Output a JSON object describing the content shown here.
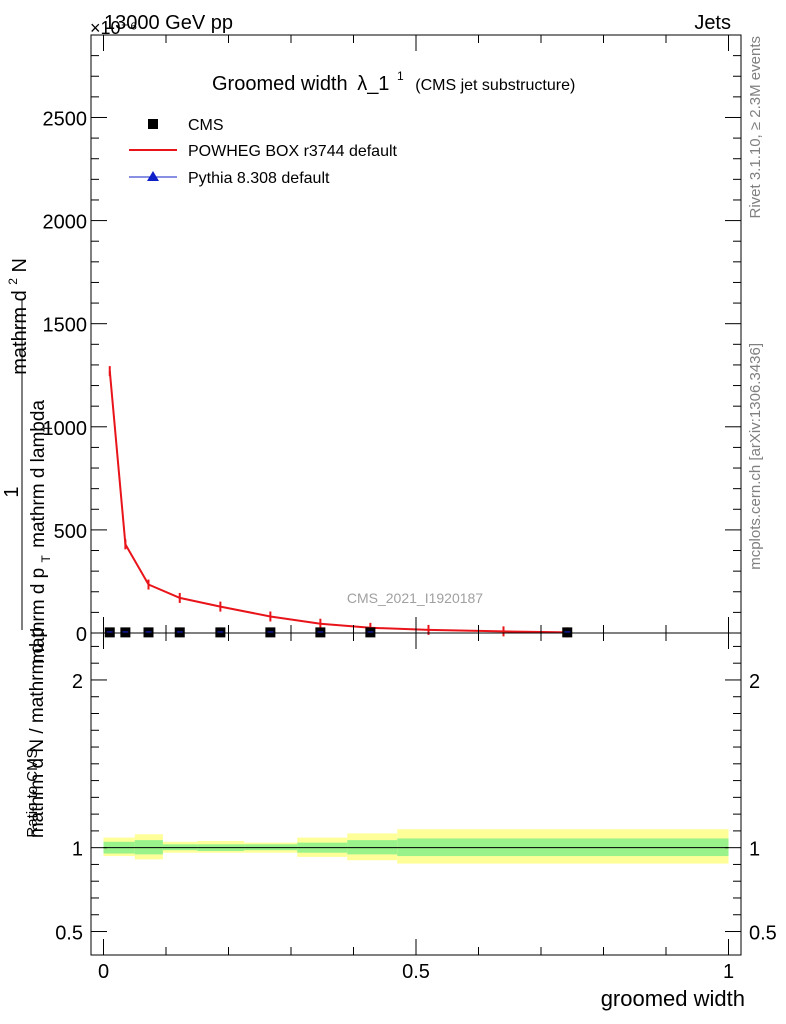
{
  "header": {
    "left": "13000 GeV pp",
    "right": "Jets",
    "exponent_label": "×10⁻⁶"
  },
  "side_labels": {
    "rivet": "Rivet 3.1.10, ≥ 2.3M events",
    "mcplots": "mcplots.cern.ch [arXiv:1306.3436]"
  },
  "watermark": "CMS_2021_I1920187",
  "colors": {
    "cms": "#000000",
    "powheg": "#e8141a",
    "pythia": "#1020c8",
    "band_inner": "#99f28a",
    "band_outer": "#ffff9a"
  },
  "chart_data": [
    {
      "type": "line",
      "title": "Groomed width",
      "title_math": "λ_1",
      "title_sup": "1",
      "subtitle": "(CMS jet substructure)",
      "ylabel": "1 / mathrm d N / mathrm d p_T mathrm d^2N / mathrm d p_T mathrm d lambda",
      "ylabel_parts": {
        "numerator_left": "1",
        "denominator_left": "mathrm d N / mathrm d p",
        "numerator_right": "mathrm d",
        "numerator_right_sup": "2",
        "numerator_right_end": "N",
        "denominator_right": "mathrm d p",
        "denominator_right_end": "mathrm d lambda",
        "subscript": "T"
      },
      "y_scale_exponent": -6,
      "xlim": [
        -0.02,
        1.02
      ],
      "ylim": [
        0,
        2900
      ],
      "yticks": [
        0,
        500,
        1000,
        1500,
        2000,
        2500
      ],
      "ytick_labels": [
        "0",
        "500",
        "1000",
        "1500",
        "2000",
        "2500"
      ],
      "legend": {
        "placement": "top-left",
        "entries": [
          "CMS",
          "POWHEG BOX r3744 default",
          "Pythia 8.308 default"
        ]
      },
      "series": [
        {
          "name": "CMS",
          "marker": "square",
          "x": [
            0.01,
            0.035,
            0.072,
            0.122,
            0.187,
            0.267,
            0.347,
            0.427,
            0.742
          ],
          "y": [
            3,
            3,
            3,
            3,
            3,
            3,
            3,
            3,
            3
          ]
        },
        {
          "name": "POWHEG BOX r3744 default",
          "marker": "line",
          "x": [
            0.01,
            0.035,
            0.072,
            0.122,
            0.187,
            0.267,
            0.347,
            0.427,
            0.52,
            0.64,
            0.742
          ],
          "y": [
            1270,
            430,
            235,
            170,
            128,
            80,
            45,
            25,
            15,
            8,
            3
          ]
        },
        {
          "name": "Pythia 8.308 default",
          "marker": "triangle",
          "x": [],
          "y": []
        }
      ]
    },
    {
      "type": "area",
      "ylabel": "Ratio to CMS",
      "xlabel": "groomed width",
      "xlim": [
        -0.02,
        1.02
      ],
      "ylim": [
        0.36,
        2.28
      ],
      "xticks": [
        0,
        0.5,
        1
      ],
      "xtick_labels": [
        "0",
        "0.5",
        "1"
      ],
      "yticks": [
        0.5,
        1,
        2
      ],
      "ytick_labels": [
        "0.5",
        "1",
        "2"
      ],
      "ratio_bands": [
        {
          "x0": 0.0,
          "x1": 0.05,
          "inner": [
            0.965,
            1.035
          ],
          "outer": [
            0.95,
            1.06
          ]
        },
        {
          "x0": 0.05,
          "x1": 0.095,
          "inner": [
            0.96,
            1.045
          ],
          "outer": [
            0.93,
            1.08
          ]
        },
        {
          "x0": 0.095,
          "x1": 0.15,
          "inner": [
            0.985,
            1.02
          ],
          "outer": [
            0.97,
            1.035
          ]
        },
        {
          "x0": 0.15,
          "x1": 0.225,
          "inner": [
            0.98,
            1.02
          ],
          "outer": [
            0.97,
            1.04
          ]
        },
        {
          "x0": 0.225,
          "x1": 0.31,
          "inner": [
            0.985,
            1.02
          ],
          "outer": [
            0.97,
            1.03
          ]
        },
        {
          "x0": 0.31,
          "x1": 0.39,
          "inner": [
            0.97,
            1.03
          ],
          "outer": [
            0.945,
            1.06
          ]
        },
        {
          "x0": 0.39,
          "x1": 0.47,
          "inner": [
            0.96,
            1.045
          ],
          "outer": [
            0.925,
            1.085
          ]
        },
        {
          "x0": 0.47,
          "x1": 1.0,
          "inner": [
            0.95,
            1.055
          ],
          "outer": [
            0.905,
            1.11
          ]
        }
      ],
      "reference": 1
    }
  ]
}
